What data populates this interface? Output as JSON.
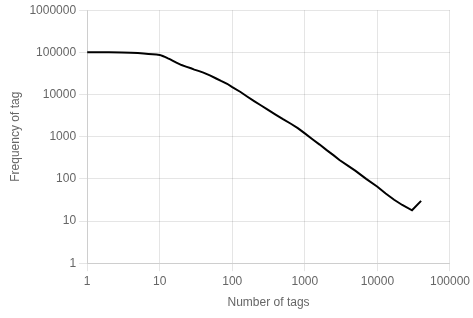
{
  "chart_data": {
    "type": "line",
    "xlabel": "Number of tags",
    "ylabel": "Frequency of tag",
    "x": [
      1,
      2,
      3,
      4,
      5,
      6,
      7,
      8,
      9,
      10,
      11,
      12,
      13,
      14,
      15,
      17,
      20,
      23,
      27,
      30,
      35,
      40,
      50,
      60,
      70,
      85,
      100,
      130,
      160,
      200,
      250,
      300,
      400,
      500,
      650,
      800,
      1000,
      1300,
      1600,
      2000,
      2500,
      3000,
      4000,
      5000,
      7000,
      10000,
      13000,
      17000,
      22000,
      30000,
      40000
    ],
    "values": [
      100000,
      100000,
      99000,
      97500,
      96000,
      94000,
      92000,
      90000,
      88500,
      87000,
      82000,
      77000,
      72000,
      68000,
      64000,
      57000,
      50000,
      46000,
      42000,
      39000,
      36000,
      33000,
      28000,
      24000,
      21000,
      18000,
      15000,
      11500,
      9000,
      7000,
      5500,
      4500,
      3300,
      2600,
      2000,
      1600,
      1200,
      850,
      650,
      480,
      360,
      280,
      200,
      155,
      100,
      65,
      45,
      32,
      24,
      18,
      30
    ],
    "color": "#000000",
    "log": true,
    "xlim": [
      1,
      100000
    ],
    "xticks": [
      1,
      10,
      100,
      1000,
      10000,
      100000
    ],
    "ylim": [
      1,
      1000000
    ],
    "yticks": [
      1,
      10,
      100,
      1000,
      10000,
      100000,
      1000000
    ],
    "grid": true
  }
}
